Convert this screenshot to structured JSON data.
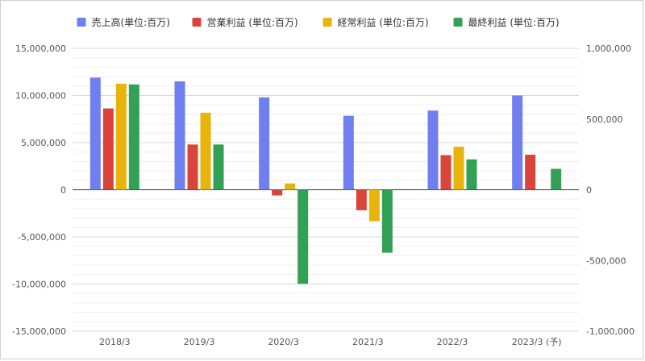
{
  "chart_data": {
    "type": "bar",
    "categories": [
      "2018/3",
      "2019/3",
      "2020/3",
      "2021/3",
      "2022/3",
      "2023/3 (予)"
    ],
    "series": [
      {
        "name": "売上高(単位:百万)",
        "color": "#6f7ff0",
        "axis": "left",
        "values": [
          11900000,
          11500000,
          9800000,
          7850000,
          8400000,
          10000000
        ]
      },
      {
        "name": "営業利益 (単位:百万)",
        "color": "#d9453b",
        "axis": "right",
        "values": [
          575000,
          320000,
          -40000,
          -145000,
          245000,
          248000
        ]
      },
      {
        "name": "経常利益 (単位:百万)",
        "color": "#e8b40c",
        "axis": "right",
        "values": [
          750000,
          545000,
          45000,
          -222000,
          305000,
          null
        ]
      },
      {
        "name": "最終利益 (単位:百万)",
        "color": "#32a055",
        "axis": "right",
        "values": [
          745000,
          320000,
          -665000,
          -445000,
          215000,
          148000
        ]
      }
    ],
    "left_axis": {
      "ylim": [
        -15000000,
        15000000
      ],
      "ticks": [
        15000000,
        10000000,
        5000000,
        0,
        -5000000,
        -10000000,
        -15000000
      ],
      "tick_labels": [
        "15,000,000",
        "10,000,000",
        "5,000,000",
        "0",
        "-5,000,000",
        "-10,000,000",
        "-15,000,000"
      ]
    },
    "right_axis": {
      "ylim": [
        -1000000,
        1000000
      ],
      "ticks": [
        1000000,
        500000,
        0,
        -500000,
        -1000000
      ],
      "tick_labels": [
        "1,000,000",
        "500,000",
        "0",
        "-500,000",
        "-1,000,000"
      ]
    },
    "legend_position": "top",
    "grid": true
  }
}
